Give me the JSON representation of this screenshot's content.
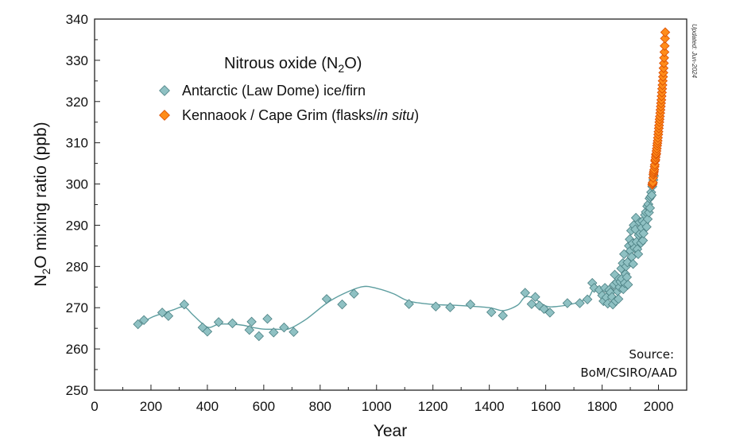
{
  "chart_data": {
    "type": "scatter",
    "xlabel": "Year",
    "ylabel_parts": [
      "N",
      "2",
      "O mixing ratio (ppb)"
    ],
    "xlim": [
      0,
      2100
    ],
    "ylim": [
      250,
      340
    ],
    "x_ticks": [
      0,
      200,
      400,
      600,
      800,
      1000,
      1200,
      1400,
      1600,
      1800,
      2000
    ],
    "y_ticks": [
      250,
      260,
      270,
      280,
      290,
      300,
      310,
      320,
      330,
      340
    ],
    "grid": false,
    "legend_title_parts": [
      "Nitrous oxide (N",
      "2",
      "O)"
    ],
    "legend_placement": "top-left",
    "annotations": {
      "source_line1": "Source:",
      "source_line2": "BoM/CSIRO/AAD",
      "updated": "Updated: Jun-2024"
    },
    "series": [
      {
        "name": "Antarctic (Law Dome) ice/firn",
        "marker": "diamond",
        "color": "#8fc1c3",
        "edge_color": "#4a7f82",
        "points": [
          [
            154,
            266.0
          ],
          [
            175,
            267.0
          ],
          [
            240,
            268.8
          ],
          [
            262,
            268.0
          ],
          [
            318,
            270.8
          ],
          [
            383,
            265.2
          ],
          [
            400,
            264.2
          ],
          [
            440,
            266.5
          ],
          [
            489,
            266.2
          ],
          [
            549,
            264.6
          ],
          [
            557,
            266.6
          ],
          [
            583,
            263.1
          ],
          [
            613,
            267.3
          ],
          [
            635,
            264.0
          ],
          [
            672,
            265.2
          ],
          [
            706,
            264.1
          ],
          [
            823,
            272.1
          ],
          [
            878,
            270.8
          ],
          [
            920,
            273.4
          ],
          [
            1115,
            270.9
          ],
          [
            1210,
            270.3
          ],
          [
            1261,
            270.1
          ],
          [
            1333,
            270.8
          ],
          [
            1407,
            268.9
          ],
          [
            1448,
            268.1
          ],
          [
            1527,
            273.6
          ],
          [
            1550,
            270.9
          ],
          [
            1563,
            272.6
          ],
          [
            1578,
            270.5
          ],
          [
            1594,
            269.7
          ],
          [
            1615,
            268.8
          ],
          [
            1677,
            271.1
          ],
          [
            1721,
            271.1
          ],
          [
            1748,
            272.0
          ],
          [
            1765,
            276.0
          ],
          [
            1772,
            274.8
          ],
          [
            1790,
            274.3
          ],
          [
            1800,
            273.0
          ],
          [
            1805,
            271.6
          ],
          [
            1810,
            274.8
          ],
          [
            1815,
            272.5
          ],
          [
            1820,
            271.0
          ],
          [
            1825,
            274.3
          ],
          [
            1830,
            273.7
          ],
          [
            1835,
            272.6
          ],
          [
            1838,
            270.8
          ],
          [
            1842,
            275.6
          ],
          [
            1845,
            278.0
          ],
          [
            1848,
            271.6
          ],
          [
            1852,
            276.2
          ],
          [
            1855,
            274.0
          ],
          [
            1858,
            272.1
          ],
          [
            1860,
            277.0
          ],
          [
            1862,
            275.0
          ],
          [
            1865,
            276.3
          ],
          [
            1868,
            279.5
          ],
          [
            1870,
            277.0
          ],
          [
            1873,
            280.8
          ],
          [
            1875,
            274.5
          ],
          [
            1878,
            283.0
          ],
          [
            1880,
            276.0
          ],
          [
            1883,
            278.2
          ],
          [
            1885,
            280.0
          ],
          [
            1888,
            277.4
          ],
          [
            1890,
            281.0
          ],
          [
            1892,
            275.6
          ],
          [
            1895,
            285.0
          ],
          [
            1898,
            286.6
          ],
          [
            1900,
            283.8
          ],
          [
            1903,
            288.7
          ],
          [
            1905,
            282.3
          ],
          [
            1908,
            285.6
          ],
          [
            1910,
            280.6
          ],
          [
            1912,
            290.0
          ],
          [
            1915,
            284.5
          ],
          [
            1918,
            289.0
          ],
          [
            1920,
            291.8
          ],
          [
            1922,
            286.0
          ],
          [
            1925,
            284.2
          ],
          [
            1928,
            283.0
          ],
          [
            1930,
            287.6
          ],
          [
            1933,
            290.7
          ],
          [
            1935,
            288.0
          ],
          [
            1938,
            285.7
          ],
          [
            1940,
            289.4
          ],
          [
            1943,
            291.0
          ],
          [
            1945,
            286.3
          ],
          [
            1947,
            288.0
          ],
          [
            1950,
            290.5
          ],
          [
            1952,
            292.5
          ],
          [
            1955,
            293.2
          ],
          [
            1958,
            289.6
          ],
          [
            1960,
            294.6
          ],
          [
            1962,
            291.5
          ],
          [
            1964,
            295.1
          ],
          [
            1966,
            293.1
          ],
          [
            1968,
            296.5
          ],
          [
            1970,
            294.2
          ],
          [
            1972,
            296.9
          ],
          [
            1974,
            298.0
          ],
          [
            1976,
            297.3
          ],
          [
            1978,
            299.4
          ],
          [
            1980,
            300.3
          ],
          [
            1982,
            301.0
          ],
          [
            1984,
            302.0
          ]
        ]
      },
      {
        "name": "Kennaook / Cape Grim (flasks/in situ)",
        "name_parts": [
          "Kennaook / Cape Grim (flasks/",
          "in situ",
          ")"
        ],
        "marker": "diamond",
        "color": "#ff8c1a",
        "edge_color": "#d94a00",
        "points": [
          [
            1978,
            299.8
          ],
          [
            1979,
            300.1
          ],
          [
            1980,
            300.4
          ],
          [
            1981,
            301.5
          ],
          [
            1982,
            302.3
          ],
          [
            1983,
            302.7
          ],
          [
            1984,
            303.1
          ],
          [
            1985,
            303.5
          ],
          [
            1986,
            304.2
          ],
          [
            1987,
            304.7
          ],
          [
            1988,
            305.6
          ],
          [
            1989,
            305.9
          ],
          [
            1990,
            306.5
          ],
          [
            1991,
            307.1
          ],
          [
            1992,
            307.4
          ],
          [
            1993,
            308.0
          ],
          [
            1994,
            308.6
          ],
          [
            1995,
            309.3
          ],
          [
            1996,
            309.9
          ],
          [
            1997,
            310.5
          ],
          [
            1998,
            311.2
          ],
          [
            1999,
            312.0
          ],
          [
            2000,
            312.7
          ],
          [
            2001,
            313.5
          ],
          [
            2002,
            314.2
          ],
          [
            2003,
            315.0
          ],
          [
            2004,
            315.7
          ],
          [
            2005,
            316.4
          ],
          [
            2006,
            317.2
          ],
          [
            2007,
            318.0
          ],
          [
            2008,
            318.8
          ],
          [
            2009,
            319.6
          ],
          [
            2010,
            320.4
          ],
          [
            2011,
            321.3
          ],
          [
            2012,
            322.2
          ],
          [
            2013,
            323.1
          ],
          [
            2014,
            324.0
          ],
          [
            2015,
            325.0
          ],
          [
            2016,
            326.0
          ],
          [
            2017,
            327.0
          ],
          [
            2018,
            328.1
          ],
          [
            2019,
            329.3
          ],
          [
            2020,
            330.6
          ],
          [
            2021,
            332.0
          ],
          [
            2022,
            333.5
          ],
          [
            2023,
            335.3
          ],
          [
            2024,
            336.8
          ]
        ]
      }
    ],
    "trend_line": {
      "color": "#5e9ea0",
      "points": [
        [
          154,
          265.8
        ],
        [
          200,
          267.6
        ],
        [
          240,
          268.6
        ],
        [
          280,
          269.5
        ],
        [
          318,
          270.2
        ],
        [
          350,
          268.2
        ],
        [
          400,
          265.3
        ],
        [
          440,
          266.0
        ],
        [
          489,
          266.0
        ],
        [
          530,
          265.7
        ],
        [
          560,
          265.2
        ],
        [
          600,
          264.8
        ],
        [
          640,
          264.8
        ],
        [
          690,
          264.9
        ],
        [
          750,
          267.2
        ],
        [
          823,
          271.1
        ],
        [
          880,
          273.3
        ],
        [
          950,
          275.1
        ],
        [
          1000,
          274.7
        ],
        [
          1060,
          273.4
        ],
        [
          1115,
          271.6
        ],
        [
          1200,
          270.8
        ],
        [
          1300,
          270.5
        ],
        [
          1400,
          270.0
        ],
        [
          1450,
          269.3
        ],
        [
          1500,
          270.6
        ],
        [
          1527,
          272.6
        ],
        [
          1560,
          272.2
        ],
        [
          1600,
          270.4
        ],
        [
          1640,
          270.3
        ],
        [
          1700,
          271.0
        ],
        [
          1750,
          272.4
        ],
        [
          1770,
          274.3
        ],
        [
          1800,
          272.9
        ],
        [
          1830,
          273.0
        ],
        [
          1860,
          275.5
        ],
        [
          1880,
          278.0
        ],
        [
          1900,
          281.6
        ],
        [
          1920,
          285.6
        ],
        [
          1940,
          289.4
        ],
        [
          1960,
          294.3
        ],
        [
          1980,
          300.3
        ],
        [
          1990,
          305.8
        ],
        [
          2000,
          312.5
        ],
        [
          2010,
          320.5
        ],
        [
          2020,
          330.5
        ],
        [
          2024,
          336.5
        ]
      ]
    }
  }
}
